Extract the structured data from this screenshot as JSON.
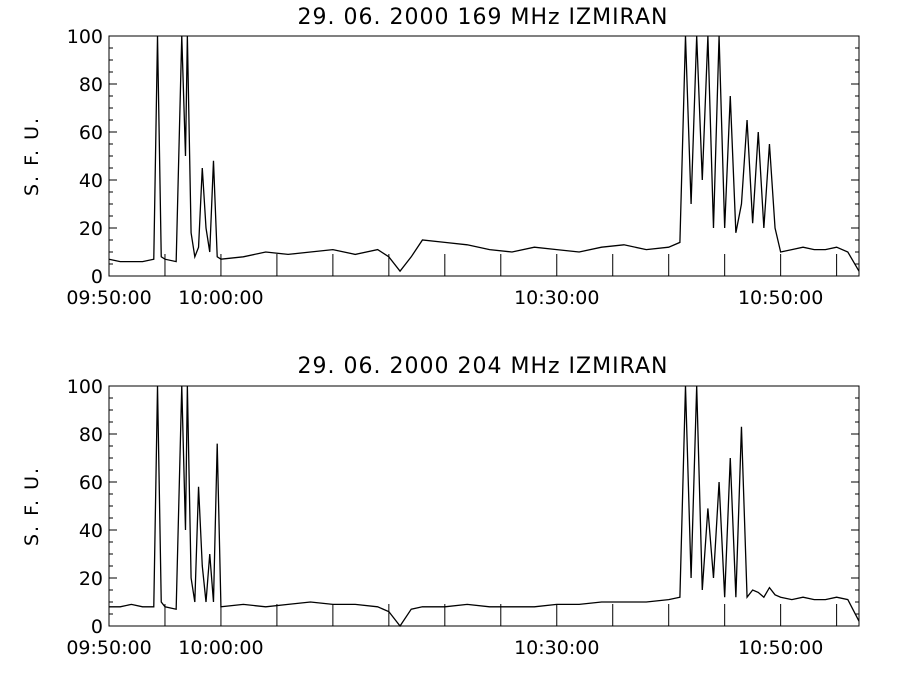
{
  "chart_data": [
    {
      "type": "line",
      "title": "29.  06.  2000    169  MHz    IZMIRAN",
      "ylabel": "S. F. U.",
      "xlabel": "",
      "xlim": [
        "09:50:00",
        "10:57:00"
      ],
      "ylim": [
        0,
        100
      ],
      "x_ticks": [
        "09:50:00",
        "10:00:00",
        "10:30:00",
        "10:50:00"
      ],
      "y_ticks": [
        0,
        20,
        40,
        60,
        80,
        100
      ],
      "grid": false,
      "series": [
        {
          "x": [
            "09:50:00",
            "09:51:00",
            "09:52:00",
            "09:53:00",
            "09:54:00",
            "09:54:20",
            "09:54:40",
            "09:55:00",
            "09:56:00",
            "09:56:30",
            "09:56:50",
            "09:57:00",
            "09:57:20",
            "09:57:40",
            "09:58:00",
            "09:58:20",
            "09:58:40",
            "09:59:00",
            "09:59:20",
            "09:59:40",
            "10:00:00",
            "10:02:00",
            "10:04:00",
            "10:06:00",
            "10:08:00",
            "10:10:00",
            "10:12:00",
            "10:14:00",
            "10:15:00",
            "10:16:00",
            "10:17:00",
            "10:18:00",
            "10:20:00",
            "10:22:00",
            "10:24:00",
            "10:26:00",
            "10:28:00",
            "10:30:00",
            "10:32:00",
            "10:34:00",
            "10:36:00",
            "10:38:00",
            "10:40:00",
            "10:41:00",
            "10:41:30",
            "10:42:00",
            "10:42:30",
            "10:43:00",
            "10:43:30",
            "10:44:00",
            "10:44:30",
            "10:45:00",
            "10:45:30",
            "10:46:00",
            "10:46:30",
            "10:47:00",
            "10:47:30",
            "10:48:00",
            "10:48:30",
            "10:49:00",
            "10:49:30",
            "10:50:00",
            "10:51:00",
            "10:52:00",
            "10:53:00",
            "10:54:00",
            "10:55:00",
            "10:56:00",
            "10:57:00"
          ],
          "y": [
            7,
            6,
            6,
            6,
            7,
            100,
            8,
            7,
            6,
            100,
            50,
            100,
            18,
            8,
            12,
            45,
            20,
            10,
            48,
            8,
            7,
            8,
            10,
            9,
            10,
            11,
            9,
            11,
            8,
            2,
            8,
            15,
            14,
            13,
            11,
            10,
            12,
            11,
            10,
            12,
            13,
            11,
            12,
            14,
            100,
            30,
            100,
            40,
            100,
            20,
            100,
            20,
            75,
            18,
            30,
            65,
            22,
            60,
            20,
            55,
            20,
            10,
            11,
            12,
            11,
            11,
            12,
            10,
            2
          ]
        }
      ]
    },
    {
      "type": "line",
      "title": "29.  06.  2000    204  MHz    IZMIRAN",
      "ylabel": "S. F. U.",
      "xlabel": "",
      "xlim": [
        "09:50:00",
        "10:57:00"
      ],
      "ylim": [
        0,
        100
      ],
      "x_ticks": [
        "09:50:00",
        "10:00:00",
        "10:30:00",
        "10:50:00"
      ],
      "y_ticks": [
        0,
        20,
        40,
        60,
        80,
        100
      ],
      "grid": false,
      "series": [
        {
          "x": [
            "09:50:00",
            "09:51:00",
            "09:52:00",
            "09:53:00",
            "09:54:00",
            "09:54:20",
            "09:54:40",
            "09:55:00",
            "09:56:00",
            "09:56:30",
            "09:56:50",
            "09:57:00",
            "09:57:20",
            "09:57:40",
            "09:58:00",
            "09:58:20",
            "09:58:40",
            "09:59:00",
            "09:59:20",
            "09:59:40",
            "10:00:00",
            "10:02:00",
            "10:04:00",
            "10:06:00",
            "10:08:00",
            "10:10:00",
            "10:12:00",
            "10:14:00",
            "10:15:00",
            "10:16:00",
            "10:17:00",
            "10:18:00",
            "10:20:00",
            "10:22:00",
            "10:24:00",
            "10:26:00",
            "10:28:00",
            "10:30:00",
            "10:32:00",
            "10:34:00",
            "10:36:00",
            "10:38:00",
            "10:40:00",
            "10:41:00",
            "10:41:30",
            "10:42:00",
            "10:42:30",
            "10:43:00",
            "10:43:30",
            "10:44:00",
            "10:44:30",
            "10:45:00",
            "10:45:30",
            "10:46:00",
            "10:46:30",
            "10:47:00",
            "10:47:30",
            "10:48:00",
            "10:48:30",
            "10:49:00",
            "10:49:30",
            "10:50:00",
            "10:51:00",
            "10:52:00",
            "10:53:00",
            "10:54:00",
            "10:55:00",
            "10:56:00",
            "10:57:00"
          ],
          "y": [
            8,
            8,
            9,
            8,
            8,
            100,
            10,
            8,
            7,
            100,
            40,
            100,
            20,
            10,
            58,
            25,
            10,
            30,
            10,
            76,
            8,
            9,
            8,
            9,
            10,
            9,
            9,
            8,
            6,
            0,
            7,
            8,
            8,
            9,
            8,
            8,
            8,
            9,
            9,
            10,
            10,
            10,
            11,
            12,
            100,
            20,
            100,
            15,
            49,
            20,
            60,
            12,
            70,
            12,
            83,
            12,
            15,
            14,
            12,
            16,
            13,
            12,
            11,
            12,
            11,
            11,
            12,
            11,
            2
          ]
        }
      ]
    }
  ]
}
